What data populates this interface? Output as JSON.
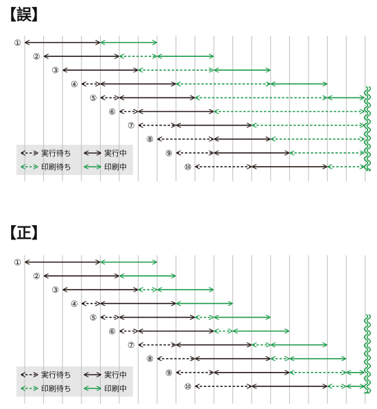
{
  "panels": [
    {
      "heading": "【誤】",
      "row_labels": [
        "①",
        "②",
        "③",
        "④",
        "⑤",
        "⑥",
        "⑦",
        "⑧",
        "⑨",
        "⑩"
      ],
      "segments": [
        [
          [
            "exec",
            0,
            4
          ],
          [
            "print",
            4,
            7
          ]
        ],
        [
          [
            "exec",
            1,
            5
          ],
          [
            "printwait",
            5,
            7
          ],
          [
            "print",
            7,
            10
          ]
        ],
        [
          [
            "exec",
            2,
            6
          ],
          [
            "printwait",
            6,
            10
          ],
          [
            "print",
            10,
            13
          ]
        ],
        [
          [
            "execwait",
            3,
            4
          ],
          [
            "exec",
            4,
            8
          ],
          [
            "printwait",
            8,
            13
          ],
          [
            "print",
            13,
            16
          ]
        ],
        [
          [
            "execwait",
            4,
            5
          ],
          [
            "exec",
            5,
            9
          ],
          [
            "printwait",
            9,
            16
          ],
          [
            "print",
            16,
            18
          ]
        ],
        [
          [
            "execwait",
            5,
            6
          ],
          [
            "exec",
            6,
            10
          ],
          [
            "printwait",
            10,
            18
          ]
        ],
        [
          [
            "execwait",
            6,
            8
          ],
          [
            "exec",
            8,
            12
          ],
          [
            "printwait",
            12,
            18
          ]
        ],
        [
          [
            "execwait",
            7,
            10
          ],
          [
            "exec",
            10,
            13
          ],
          [
            "printwait",
            13,
            18
          ]
        ],
        [
          [
            "execwait",
            8,
            10
          ],
          [
            "exec",
            10,
            14
          ],
          [
            "printwait",
            14,
            18
          ]
        ],
        [
          [
            "execwait",
            9,
            12
          ],
          [
            "exec",
            12,
            16
          ],
          [
            "printwait",
            16,
            18
          ]
        ]
      ]
    },
    {
      "heading": "【正】",
      "row_labels": [
        "①",
        "②",
        "③",
        "④",
        "⑤",
        "⑥",
        "⑦",
        "⑧",
        "⑨",
        "⑩"
      ],
      "segments": [
        [
          [
            "exec",
            0,
            4
          ],
          [
            "print",
            4,
            7
          ]
        ],
        [
          [
            "exec",
            1,
            5
          ],
          [
            "print",
            5,
            8
          ]
        ],
        [
          [
            "exec",
            2,
            6
          ],
          [
            "printwait",
            6,
            7
          ],
          [
            "print",
            7,
            10
          ]
        ],
        [
          [
            "execwait",
            3,
            4
          ],
          [
            "exec",
            4,
            8
          ],
          [
            "print",
            8,
            11
          ]
        ],
        [
          [
            "execwait",
            4,
            5
          ],
          [
            "exec",
            5,
            9
          ],
          [
            "printwait",
            9,
            10
          ],
          [
            "print",
            10,
            13
          ]
        ],
        [
          [
            "execwait",
            5,
            6
          ],
          [
            "exec",
            6,
            10
          ],
          [
            "printwait",
            10,
            11
          ],
          [
            "print",
            11,
            14
          ]
        ],
        [
          [
            "execwait",
            6,
            8
          ],
          [
            "exec",
            8,
            12
          ],
          [
            "printwait",
            12,
            13
          ],
          [
            "print",
            13,
            16
          ]
        ],
        [
          [
            "execwait",
            7,
            9
          ],
          [
            "exec",
            9,
            13
          ],
          [
            "printwait",
            13,
            14
          ],
          [
            "print",
            14,
            17
          ]
        ],
        [
          [
            "execwait",
            8,
            10
          ],
          [
            "exec",
            10,
            14
          ],
          [
            "printwait",
            14,
            17
          ],
          [
            "print",
            17,
            18
          ]
        ],
        [
          [
            "execwait",
            9,
            12
          ],
          [
            "exec",
            12,
            16
          ],
          [
            "printwait",
            16,
            17
          ],
          [
            "print",
            17,
            18
          ]
        ]
      ]
    }
  ],
  "legend": {
    "exec_wait": "実行待ち",
    "exec": "実行中",
    "print_wait": "印刷待ち",
    "print": "印刷中"
  },
  "colors": {
    "exec": "#231815",
    "print": "#1a9a48",
    "grid": "#bdbdbd",
    "legend_bg": "#e6e6e6"
  }
}
